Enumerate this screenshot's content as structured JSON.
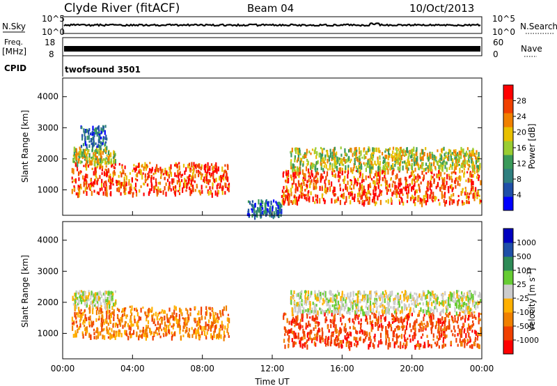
{
  "header": {
    "station": "Clyde River (fitACF)",
    "beam": "Beam 04",
    "date": "10/Oct/2013"
  },
  "noise_panel": {
    "left_label": "N.Sky",
    "right_label": "N.Search",
    "tick_top": "10^5",
    "tick_bottom": "10^0"
  },
  "freq_panel": {
    "left_label_1": "Freq.",
    "left_label_2": "[MHz]",
    "left_tick_top": "18",
    "left_tick_bottom": "8",
    "right_label": "Nave",
    "right_tick_top": "60",
    "right_tick_bottom": "0"
  },
  "cpid_panel": {
    "label": "CPID",
    "program": "twofsound 3501"
  },
  "colors": {
    "power": [
      "#0000ff",
      "#1f4fa8",
      "#2f7f7f",
      "#3a9a5a",
      "#9acd32",
      "#e8c000",
      "#f08000",
      "#f04000",
      "#ff0000"
    ],
    "velocity": [
      "#ff0000",
      "#f04000",
      "#f08000",
      "#ffb000",
      "#cccccc",
      "#66cc33",
      "#2e8b57",
      "#1f4fa8",
      "#0000c0"
    ]
  },
  "chart_data": [
    {
      "type": "heatmap",
      "name": "power",
      "ylabel": "Slant Range [km]",
      "xlabel": "",
      "xlim": [
        "00:00",
        "24:00"
      ],
      "ylim": [
        180,
        4600
      ],
      "yticks": [
        1000,
        2000,
        3000,
        4000
      ],
      "colorbar_label": "Power [dB]",
      "colorbar_ticks": [
        4,
        8,
        12,
        16,
        20,
        24,
        28
      ],
      "scatter_bands": [
        {
          "t0": 0.5,
          "t1": 9.5,
          "r0": 900,
          "r1": 1900,
          "level": "high"
        },
        {
          "t0": 0.5,
          "t1": 3.0,
          "r0": 1900,
          "r1": 2400,
          "level": "mid"
        },
        {
          "t0": 1.0,
          "t1": 2.5,
          "r0": 2400,
          "r1": 3100,
          "level": "low"
        },
        {
          "t0": 10.5,
          "t1": 12.5,
          "r0": 200,
          "r1": 700,
          "level": "low"
        },
        {
          "t0": 12.5,
          "t1": 23.9,
          "r0": 600,
          "r1": 1700,
          "level": "high"
        },
        {
          "t0": 13.0,
          "t1": 23.9,
          "r0": 1700,
          "r1": 2400,
          "level": "mid"
        }
      ]
    },
    {
      "type": "heatmap",
      "name": "velocity",
      "ylabel": "Slant Range [km]",
      "xlabel": "Time UT",
      "xlim": [
        "00:00",
        "24:00"
      ],
      "xticks": [
        "00:00",
        "04:00",
        "08:00",
        "12:00",
        "16:00",
        "20:00",
        "00:00"
      ],
      "ylim": [
        180,
        4600
      ],
      "yticks": [
        1000,
        2000,
        3000,
        4000
      ],
      "colorbar_label": "Velocity [m s^-1]",
      "colorbar_ticks": [
        -1000,
        -500,
        -100,
        -25,
        25,
        100,
        500,
        1000
      ],
      "scatter_bands": [
        {
          "t0": 0.5,
          "t1": 9.5,
          "r0": 900,
          "r1": 1900,
          "level": "orange"
        },
        {
          "t0": 0.5,
          "t1": 3.0,
          "r0": 1900,
          "r1": 2400,
          "level": "grey"
        },
        {
          "t0": 12.5,
          "t1": 23.9,
          "r0": 600,
          "r1": 1700,
          "level": "red"
        },
        {
          "t0": 13.0,
          "t1": 23.9,
          "r0": 1700,
          "r1": 2400,
          "level": "grey"
        }
      ]
    }
  ]
}
